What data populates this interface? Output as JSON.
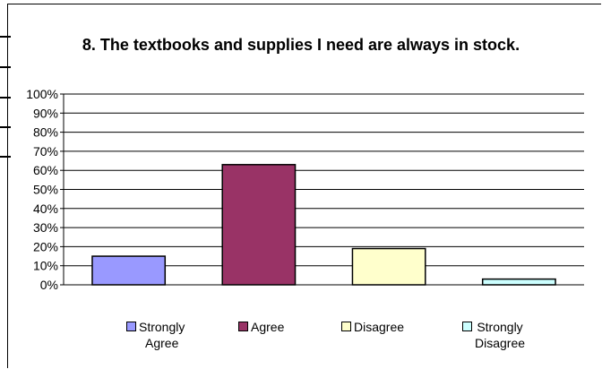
{
  "chart_data": {
    "type": "bar",
    "title": "8. The textbooks and supplies I need are always in stock.",
    "categories": [
      "Strongly Agree",
      "Agree",
      "Disagree",
      "Strongly Disagree"
    ],
    "values": [
      15,
      63,
      19,
      3
    ],
    "colors": [
      "#9999ff",
      "#993366",
      "#ffffcc",
      "#ccffff"
    ],
    "ylim": [
      0,
      100
    ],
    "yticks": [
      "0%",
      "10%",
      "20%",
      "30%",
      "40%",
      "50%",
      "60%",
      "70%",
      "80%",
      "90%",
      "100%"
    ],
    "grid": true,
    "legend_position": "bottom",
    "legend_labels": [
      [
        "Strongly",
        "Agree"
      ],
      [
        "Agree"
      ],
      [
        "Disagree"
      ],
      [
        "Strongly",
        "Disagree"
      ]
    ]
  }
}
